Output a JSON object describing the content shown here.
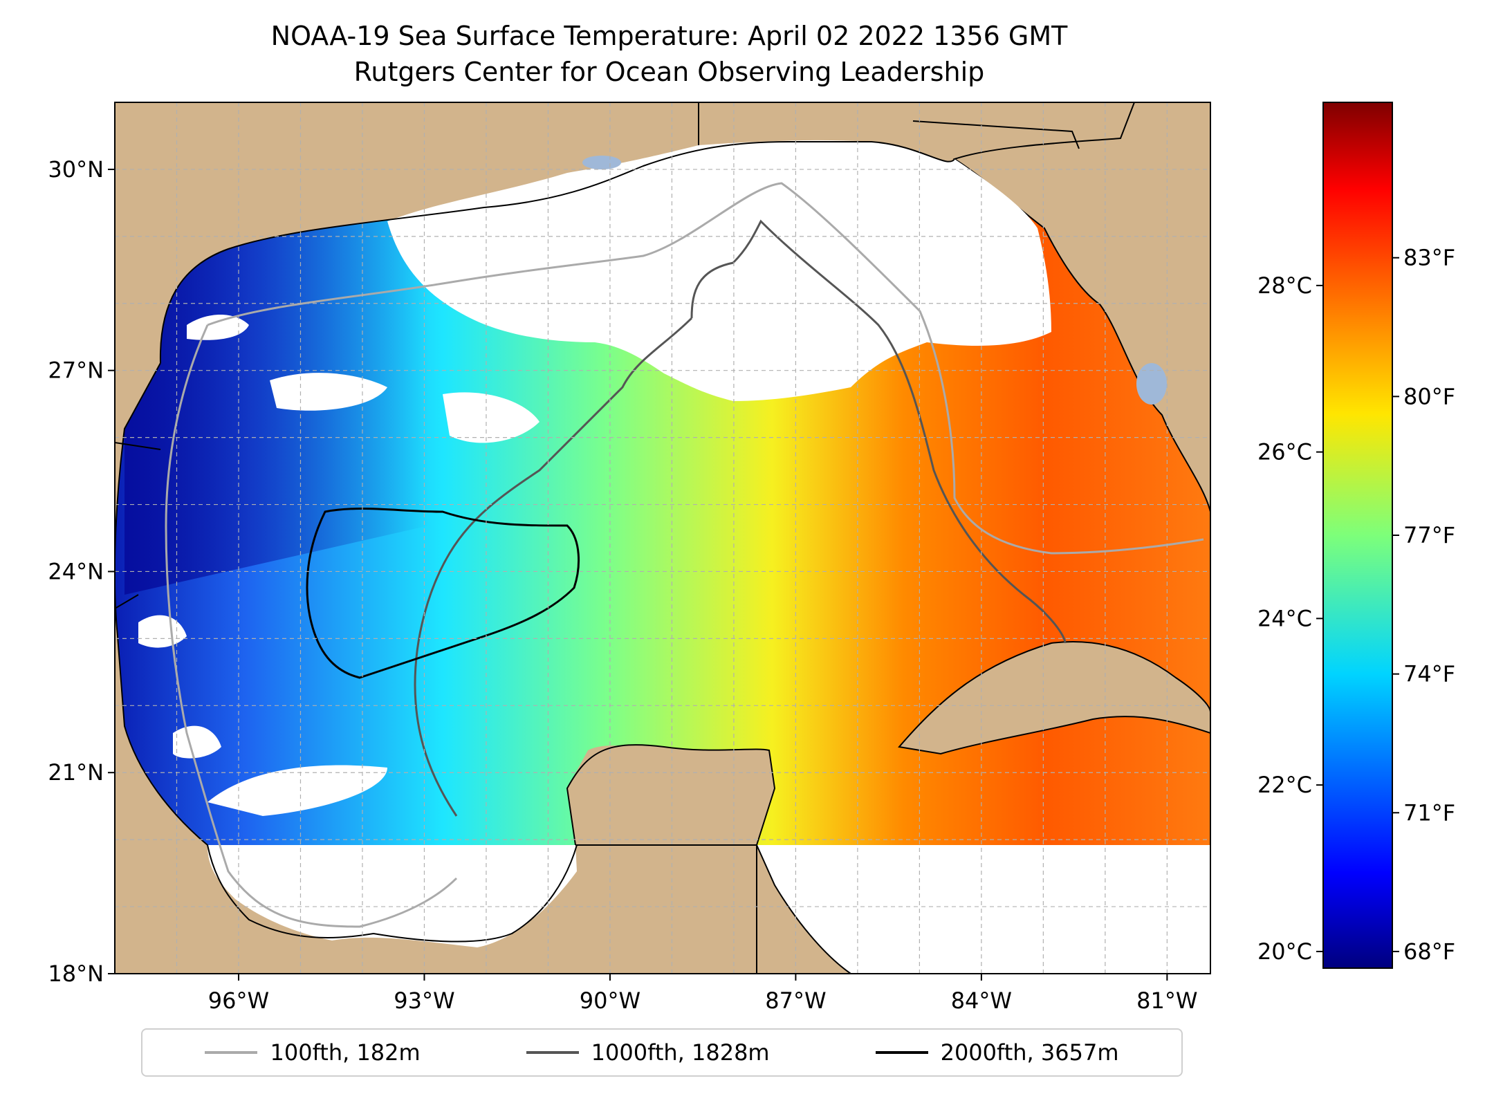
{
  "title": "NOAA-19 Sea Surface Temperature: April 02 2022 1356 GMT",
  "subtitle": "Rutgers Center for Ocean Observing Leadership",
  "map": {
    "lon_range": [
      -98.0,
      -80.3
    ],
    "lat_range": [
      18.0,
      31.0
    ],
    "lat_ticks": [
      {
        "value": 30,
        "label": "30°N"
      },
      {
        "value": 27,
        "label": "27°N"
      },
      {
        "value": 24,
        "label": "24°N"
      },
      {
        "value": 21,
        "label": "21°N"
      },
      {
        "value": 18,
        "label": "18°N"
      }
    ],
    "lon_ticks": [
      {
        "value": -96,
        "label": "96°W"
      },
      {
        "value": -93,
        "label": "93°W"
      },
      {
        "value": -90,
        "label": "90°W"
      },
      {
        "value": -87,
        "label": "87°W"
      },
      {
        "value": -84,
        "label": "84°W"
      },
      {
        "value": -81,
        "label": "81°W"
      }
    ],
    "grid": true,
    "colors": {
      "land": "#d2b48c",
      "no_data": "#ffffff",
      "lakes": "#9fb8d8",
      "coast": "#000000",
      "grid": "#b0b0b0"
    }
  },
  "colorbar": {
    "colormap": "jet",
    "celsius_range": [
      19.8,
      30.2
    ],
    "celsius_ticks": [
      {
        "value": 28,
        "label": "28°C"
      },
      {
        "value": 26,
        "label": "26°C"
      },
      {
        "value": 24,
        "label": "24°C"
      },
      {
        "value": 22,
        "label": "22°C"
      },
      {
        "value": 20,
        "label": "20°C"
      }
    ],
    "fahrenheit_ticks": [
      {
        "value": 83,
        "label": "83°F"
      },
      {
        "value": 80,
        "label": "80°F"
      },
      {
        "value": 77,
        "label": "77°F"
      },
      {
        "value": 74,
        "label": "74°F"
      },
      {
        "value": 71,
        "label": "71°F"
      },
      {
        "value": 68,
        "label": "68°F"
      }
    ]
  },
  "legend": {
    "placement": "bottom-center",
    "items": [
      {
        "label": "100fth, 182m",
        "color": "#aaaaaa"
      },
      {
        "label": "1000fth, 1828m",
        "color": "#555555"
      },
      {
        "label": "2000fth, 3657m",
        "color": "#000000"
      }
    ]
  }
}
